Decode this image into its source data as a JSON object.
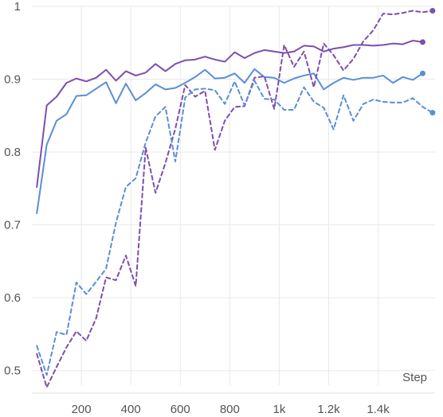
{
  "chart_data": {
    "type": "line",
    "title": "",
    "xlabel": "Step",
    "ylabel": "",
    "xlim": [
      0,
      1630
    ],
    "ylim": [
      0.48,
      1.0
    ],
    "grid": true,
    "legend": "none",
    "x_ticks": [
      {
        "value": 200,
        "label": "200"
      },
      {
        "value": 400,
        "label": "400"
      },
      {
        "value": 600,
        "label": "600"
      },
      {
        "value": 800,
        "label": "800"
      },
      {
        "value": 1000,
        "label": "1k"
      },
      {
        "value": 1200,
        "label": "1.2k"
      },
      {
        "value": 1400,
        "label": "1.4k"
      }
    ],
    "y_ticks": [
      {
        "value": 0.5,
        "label": "0.5"
      },
      {
        "value": 0.6,
        "label": "0.6"
      },
      {
        "value": 0.7,
        "label": "0.7"
      },
      {
        "value": 0.8,
        "label": "0.8"
      },
      {
        "value": 0.9,
        "label": "0.9"
      },
      {
        "value": 1.0,
        "label": "1"
      }
    ],
    "series": [
      {
        "color": "#7b4fae",
        "style": "solid",
        "end_marker": true,
        "x": [
          20,
          60,
          100,
          140,
          180,
          220,
          260,
          300,
          340,
          380,
          420,
          460,
          500,
          540,
          580,
          620,
          660,
          700,
          740,
          780,
          820,
          860,
          900,
          940,
          980,
          1020,
          1060,
          1100,
          1140,
          1180,
          1220,
          1260,
          1300,
          1340,
          1380,
          1420,
          1460,
          1500,
          1540,
          1580
        ],
        "y": [
          0.752,
          0.864,
          0.876,
          0.895,
          0.901,
          0.897,
          0.902,
          0.913,
          0.898,
          0.911,
          0.905,
          0.909,
          0.921,
          0.911,
          0.921,
          0.926,
          0.927,
          0.931,
          0.927,
          0.924,
          0.937,
          0.929,
          0.936,
          0.94,
          0.938,
          0.936,
          0.938,
          0.946,
          0.945,
          0.938,
          0.942,
          0.944,
          0.947,
          0.947,
          0.946,
          0.947,
          0.949,
          0.948,
          0.953,
          0.951
        ]
      },
      {
        "color": "#5a8fd6",
        "style": "solid",
        "end_marker": true,
        "x": [
          20,
          60,
          100,
          140,
          180,
          220,
          260,
          300,
          340,
          380,
          420,
          460,
          500,
          540,
          580,
          620,
          660,
          700,
          740,
          780,
          820,
          860,
          900,
          940,
          980,
          1020,
          1060,
          1100,
          1140,
          1180,
          1220,
          1260,
          1300,
          1340,
          1380,
          1420,
          1460,
          1500,
          1540,
          1580
        ],
        "y": [
          0.716,
          0.81,
          0.843,
          0.852,
          0.877,
          0.878,
          0.887,
          0.896,
          0.867,
          0.894,
          0.871,
          0.881,
          0.893,
          0.886,
          0.888,
          0.895,
          0.903,
          0.913,
          0.901,
          0.902,
          0.908,
          0.895,
          0.914,
          0.903,
          0.902,
          0.895,
          0.901,
          0.905,
          0.908,
          0.886,
          0.895,
          0.902,
          0.899,
          0.902,
          0.902,
          0.905,
          0.895,
          0.903,
          0.899,
          0.908
        ]
      },
      {
        "color": "#7b4fae",
        "style": "dashed",
        "end_marker": true,
        "x": [
          20,
          60,
          100,
          140,
          180,
          220,
          260,
          300,
          340,
          380,
          420,
          460,
          500,
          540,
          580,
          620,
          660,
          700,
          740,
          780,
          820,
          860,
          900,
          940,
          980,
          1020,
          1060,
          1100,
          1140,
          1180,
          1220,
          1260,
          1300,
          1340,
          1380,
          1420,
          1460,
          1500,
          1540,
          1580,
          1620
        ],
        "y": [
          0.523,
          0.477,
          0.505,
          0.532,
          0.554,
          0.541,
          0.572,
          0.628,
          0.624,
          0.658,
          0.616,
          0.806,
          0.744,
          0.785,
          0.832,
          0.892,
          0.876,
          0.884,
          0.803,
          0.843,
          0.862,
          0.863,
          0.902,
          0.904,
          0.859,
          0.947,
          0.917,
          0.938,
          0.889,
          0.949,
          0.933,
          0.912,
          0.928,
          0.952,
          0.967,
          0.99,
          0.989,
          0.991,
          0.994,
          0.992,
          0.994
        ]
      },
      {
        "color": "#5a8fd6",
        "style": "dashed",
        "end_marker": true,
        "x": [
          20,
          60,
          100,
          140,
          180,
          220,
          260,
          300,
          340,
          380,
          420,
          460,
          500,
          540,
          580,
          620,
          660,
          700,
          740,
          780,
          820,
          860,
          900,
          940,
          980,
          1020,
          1060,
          1100,
          1140,
          1180,
          1220,
          1260,
          1300,
          1340,
          1380,
          1420,
          1460,
          1500,
          1540,
          1580,
          1620
        ],
        "y": [
          0.534,
          0.494,
          0.553,
          0.549,
          0.621,
          0.605,
          0.622,
          0.64,
          0.703,
          0.752,
          0.764,
          0.813,
          0.849,
          0.862,
          0.787,
          0.875,
          0.886,
          0.887,
          0.885,
          0.866,
          0.897,
          0.864,
          0.898,
          0.873,
          0.872,
          0.858,
          0.858,
          0.889,
          0.869,
          0.861,
          0.831,
          0.878,
          0.843,
          0.866,
          0.872,
          0.869,
          0.868,
          0.868,
          0.874,
          0.862,
          0.854
        ]
      }
    ]
  }
}
